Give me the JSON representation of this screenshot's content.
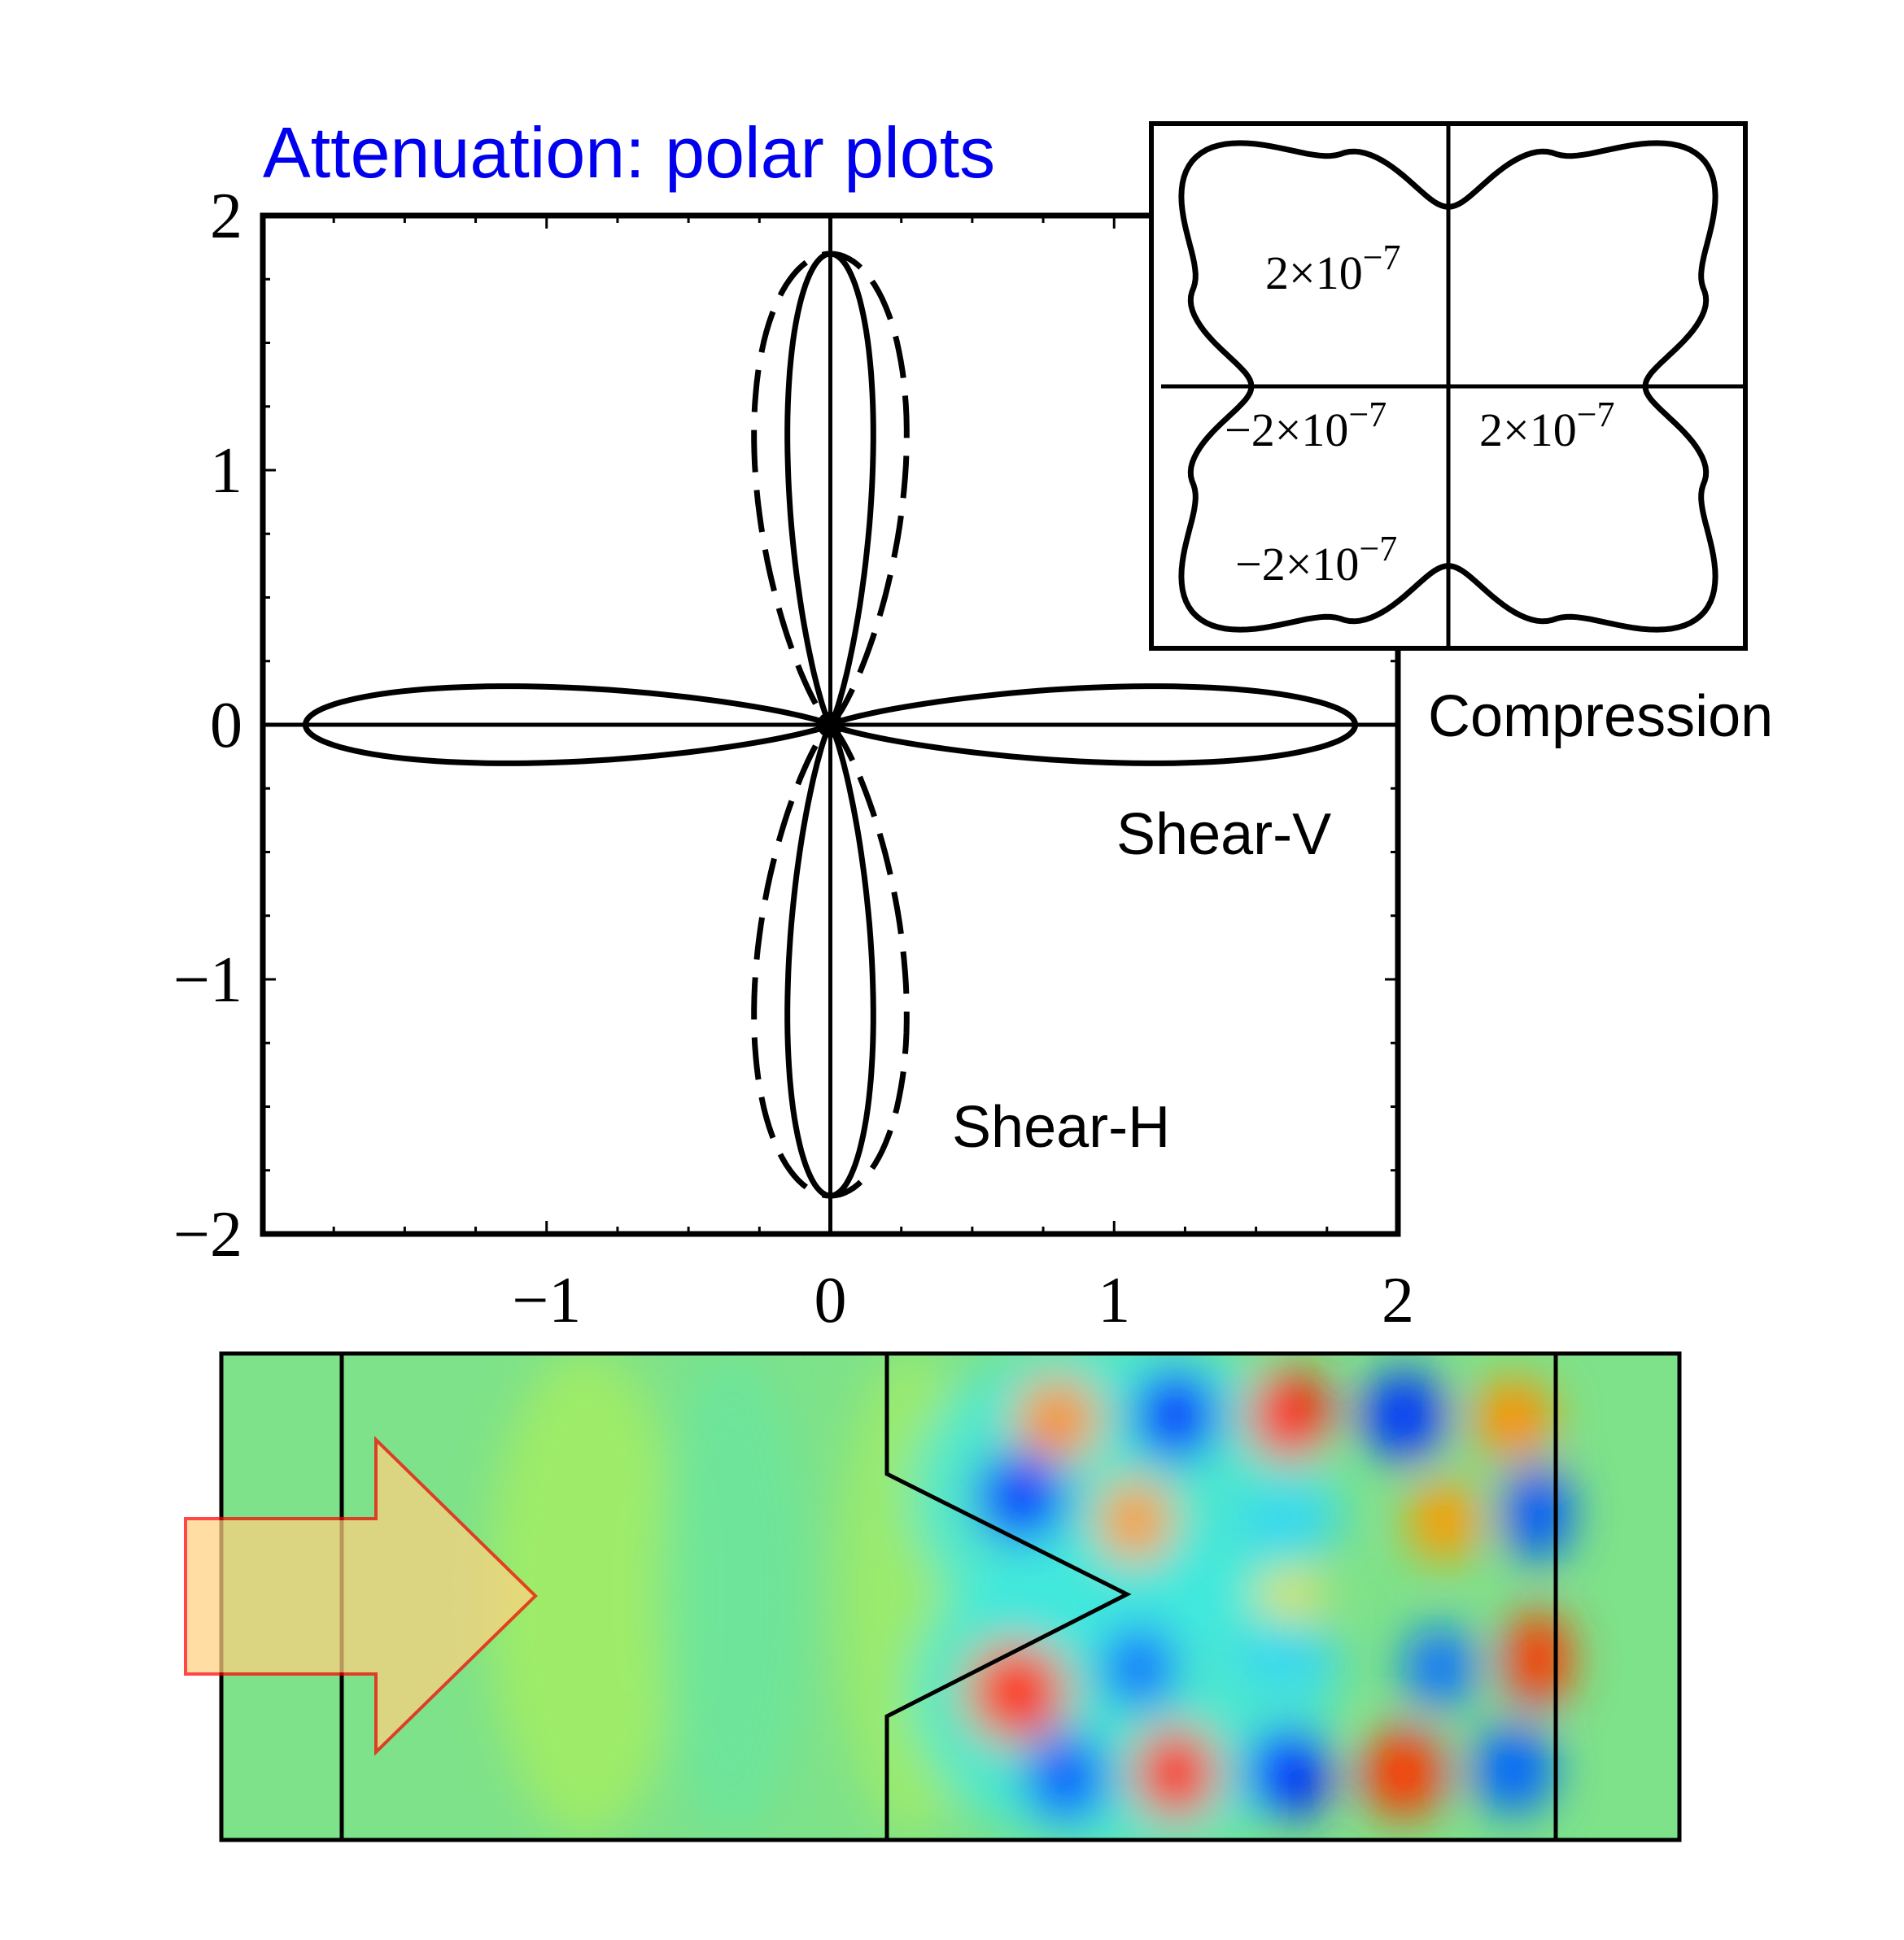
{
  "chart_data": [
    {
      "type": "line",
      "subtype": "polar",
      "title": "Attenuation: polar plots",
      "title_color": "#0000ee",
      "xlim": [
        -2,
        2
      ],
      "ylim": [
        -2,
        2
      ],
      "x_ticks": [
        "−1",
        "0",
        "1",
        "2"
      ],
      "x_tick_values": [
        -1,
        0,
        1,
        2
      ],
      "y_ticks": [
        "2",
        "1",
        "0",
        "−1",
        "−2"
      ],
      "y_tick_values": [
        2,
        1,
        0,
        -1,
        -2
      ],
      "series": [
        {
          "name": "Shear-V",
          "style": "solid",
          "shape": "four-lobe",
          "lobe_axes": [
            "x",
            "y"
          ],
          "max_radius": 1.85,
          "lobe_half_width": 0.18
        },
        {
          "name": "Shear-H",
          "style": "dashed",
          "shape": "two-lobe",
          "lobe_axes": [
            "y"
          ],
          "max_radius": 1.85,
          "lobe_half_width": 0.32
        }
      ]
    },
    {
      "type": "line",
      "subtype": "polar",
      "inset": true,
      "series": [
        {
          "name": "Compression",
          "style": "solid",
          "shape": "four-lobe"
        }
      ],
      "tick_labels": {
        "y_pos": "2×10−7",
        "y_neg": "−2×10−7",
        "x_neg": "−2×10−7",
        "x_pos": "2×10−7"
      },
      "tick_labels_rich": {
        "base": "2×10",
        "exp": "−7",
        "neg_prefix": "−"
      }
    },
    {
      "type": "heatmap",
      "description_free": true,
      "colormap": "jet",
      "arrow_fill": "#ffd080",
      "arrow_stroke": "#ff0000"
    }
  ]
}
